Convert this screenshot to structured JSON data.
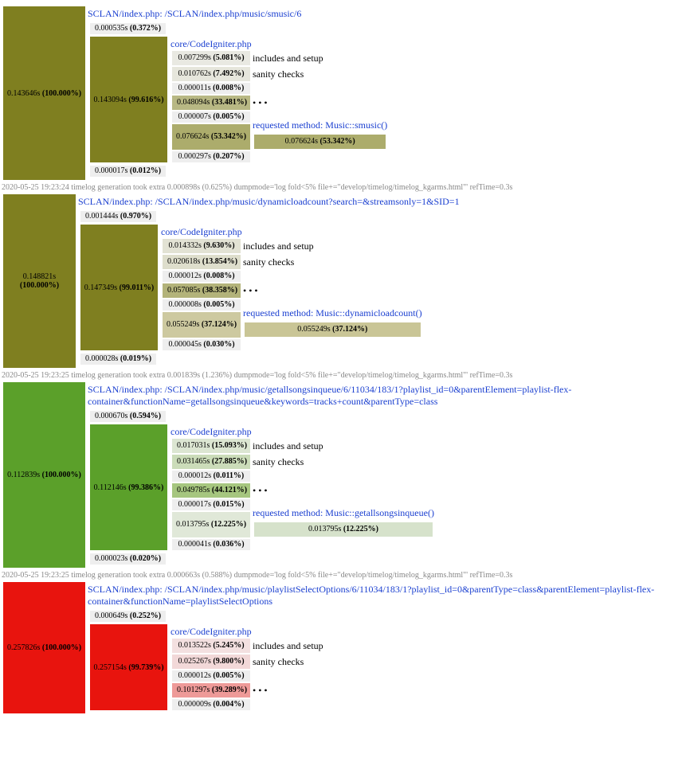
{
  "blocks": [
    {
      "color": "#7f7f20",
      "root": {
        "time": "0.143646s",
        "pct": "(100.000%)"
      },
      "url": "SCLAN/index.php: /SCLAN/index.php/music/smusic/6",
      "pre": {
        "time": "0.000535s",
        "pct": "(0.372%)"
      },
      "core_label": "core/CodeIgniter.php",
      "core": {
        "time": "0.143094s",
        "pct": "(99.616%)"
      },
      "rows": [
        {
          "time": "0.007299s",
          "pct": "(5.081%)",
          "label": "includes and setup",
          "color": "#e9e9e2"
        },
        {
          "time": "0.010762s",
          "pct": "(7.492%)",
          "label": "sanity checks",
          "color": "#e6e6dc"
        },
        {
          "time": "0.000011s",
          "pct": "(0.008%)",
          "color": "#eeeeee"
        },
        {
          "time": "0.048094s",
          "pct": "(33.481%)",
          "label": "• • •",
          "color": "#b8b884"
        },
        {
          "time": "0.000007s",
          "pct": "(0.005%)",
          "color": "#eeeeee"
        },
        {
          "time": "0.076624s",
          "pct": "(53.342%)",
          "color": "#acac6c",
          "method": {
            "label": "requested method: Music::smusic()",
            "time": "0.076624s",
            "pct": "(53.342%)",
            "color": "#acac6c"
          }
        },
        {
          "time": "0.000297s",
          "pct": "(0.207%)",
          "color": "#eeeeee"
        }
      ],
      "tail": {
        "time": "0.000017s",
        "pct": "(0.012%)"
      },
      "log": "2020-05-25 19:23:24 timelog generation took extra 0.000898s (0.625%) dumpmode='log fold<5% file+=\"develop/timelog/timelog_kgarms.html\"' refTime=0.3s"
    },
    {
      "color": "#7f7f20",
      "root": {
        "time": "0.148821s",
        "pct": "(100.000%)"
      },
      "url": "SCLAN/index.php: /SCLAN/index.php/music/dynamicloadcount?search=&streamsonly=1&SID=1",
      "pre": {
        "time": "0.001444s",
        "pct": "(0.970%)"
      },
      "core_label": "core/CodeIgniter.php",
      "core": {
        "time": "0.147349s",
        "pct": "(99.011%)"
      },
      "rows": [
        {
          "time": "0.014332s",
          "pct": "(9.630%)",
          "label": "includes and setup",
          "color": "#e2e2d4"
        },
        {
          "time": "0.020618s",
          "pct": "(13.854%)",
          "label": "sanity checks",
          "color": "#dedecc"
        },
        {
          "time": "0.000012s",
          "pct": "(0.008%)",
          "color": "#eeeeee"
        },
        {
          "time": "0.057085s",
          "pct": "(38.358%)",
          "label": "• • •",
          "color": "#b3b37a"
        },
        {
          "time": "0.000008s",
          "pct": "(0.005%)",
          "color": "#eeeeee"
        },
        {
          "time": "0.055249s",
          "pct": "(37.124%)",
          "color": "#cdc9a0",
          "method": {
            "label": "requested method: Music::dynamicloadcount()",
            "time": "0.055249s",
            "pct": "(37.124%)",
            "color": "#c9c596"
          }
        },
        {
          "time": "0.000045s",
          "pct": "(0.030%)",
          "color": "#eeeeee"
        }
      ],
      "tail": {
        "time": "0.000028s",
        "pct": "(0.019%)"
      },
      "log": "2020-05-25 19:23:25 timelog generation took extra 0.001839s (1.236%) dumpmode='log fold<5% file+=\"develop/timelog/timelog_kgarms.html\"' refTime=0.3s"
    },
    {
      "color": "#5ba02a",
      "root": {
        "time": "0.112839s",
        "pct": "(100.000%)"
      },
      "url": "SCLAN/index.php: /SCLAN/index.php/music/getallsongsinqueue/6/11034/183/1?playlist_id=0&parentElement=playlist-flex-container&functionName=getallsongsinqueue&keywords=tracks+count&parentType=class",
      "pre": {
        "time": "0.000670s",
        "pct": "(0.594%)"
      },
      "core_label": "core/CodeIgniter.php",
      "core": {
        "time": "0.112146s",
        "pct": "(99.386%)"
      },
      "rows": [
        {
          "time": "0.017031s",
          "pct": "(15.093%)",
          "label": "includes and setup",
          "color": "#dce6d2"
        },
        {
          "time": "0.031465s",
          "pct": "(27.885%)",
          "label": "sanity checks",
          "color": "#cbdcb9"
        },
        {
          "time": "0.000012s",
          "pct": "(0.011%)",
          "color": "#eeeeee"
        },
        {
          "time": "0.049785s",
          "pct": "(44.121%)",
          "label": "• • •",
          "color": "#a6c67f"
        },
        {
          "time": "0.000017s",
          "pct": "(0.015%)",
          "color": "#eeeeee"
        },
        {
          "time": "0.013795s",
          "pct": "(12.225%)",
          "color": "#e0e8d8",
          "method": {
            "label": "requested method: Music::getallsongsinqueue()",
            "time": "0.013795s",
            "pct": "(12.225%)",
            "color": "#d6e2cb"
          }
        },
        {
          "time": "0.000041s",
          "pct": "(0.036%)",
          "color": "#eeeeee"
        }
      ],
      "tail": {
        "time": "0.000023s",
        "pct": "(0.020%)"
      },
      "log": "2020-05-25 19:23:25 timelog generation took extra 0.000663s (0.588%) dumpmode='log fold<5% file+=\"develop/timelog/timelog_kgarms.html\"' refTime=0.3s"
    },
    {
      "color": "#e8140e",
      "root": {
        "time": "0.257826s",
        "pct": "(100.000%)"
      },
      "url": "SCLAN/index.php: /SCLAN/index.php/music/playlistSelectOptions/6/11034/183/1?playlist_id=0&parentType=class&parentElement=playlist-flex-container&functionName=playlistSelectOptions",
      "pre": {
        "time": "0.000649s",
        "pct": "(0.252%)"
      },
      "core_label": "core/CodeIgniter.php",
      "core": {
        "time": "0.257154s",
        "pct": "(99.739%)"
      },
      "rows": [
        {
          "time": "0.013522s",
          "pct": "(5.245%)",
          "label": "includes and setup",
          "color": "#f3e0e0"
        },
        {
          "time": "0.025267s",
          "pct": "(9.800%)",
          "label": "sanity checks",
          "color": "#f2d8d8"
        },
        {
          "time": "0.000012s",
          "pct": "(0.005%)",
          "color": "#eeeeee"
        },
        {
          "time": "0.101297s",
          "pct": "(39.289%)",
          "label": "• • •",
          "color": "#ee9a98"
        },
        {
          "time": "0.000009s",
          "pct": "(0.004%)",
          "color": "#eeeeee"
        }
      ]
    }
  ]
}
